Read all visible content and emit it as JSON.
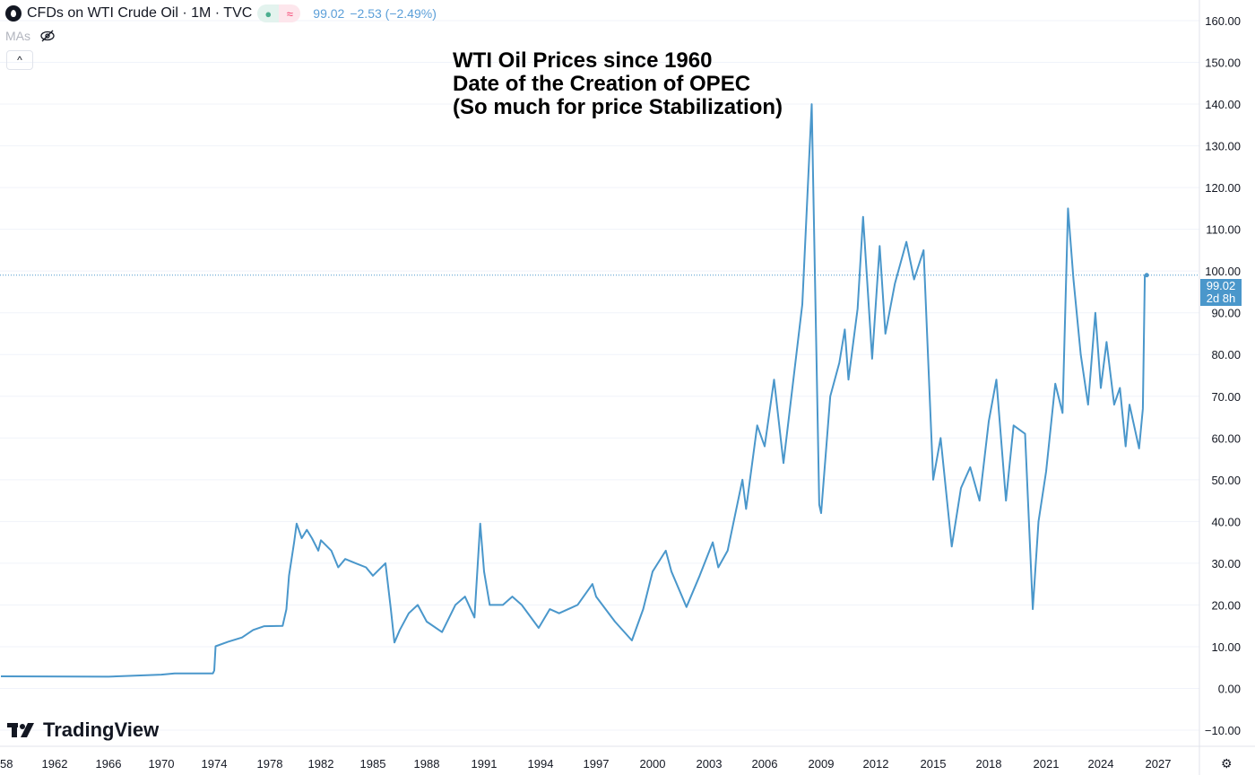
{
  "header": {
    "symbol": "CFDs on WTI Crude Oil · 1M · TVC",
    "last_price": "99.02",
    "change": "−2.53 (−2.49%)",
    "status_market_icon": "dot-icon",
    "status_delay_icon": "approx-icon",
    "mas_label": "MAs",
    "collapse_icon": "chevron-up-icon"
  },
  "annotation": "WTI Oil Prices since 1960\nDate of the Creation of OPEC\n(So much for price Stabilization)",
  "price_tag": {
    "price": "99.02",
    "countdown": "2d 8h"
  },
  "logo": "TradingView",
  "colors": {
    "line": "#4a97cb",
    "grid": "#f0f3fa",
    "text": "#131722"
  },
  "chart_data": {
    "type": "line",
    "title": "",
    "ylim": [
      -10,
      160
    ],
    "y_ticks": [
      "160.00",
      "150.00",
      "140.00",
      "130.00",
      "120.00",
      "110.00",
      "100.00",
      "90.00",
      "80.00",
      "70.00",
      "60.00",
      "50.00",
      "40.00",
      "30.00",
      "20.00",
      "10.00",
      "0.00",
      "−10.00"
    ],
    "x_ticks": [
      "58",
      "1962",
      "1966",
      "1970",
      "1974",
      "1978",
      "1982",
      "1985",
      "1988",
      "1991",
      "1994",
      "1997",
      "2000",
      "2003",
      "2006",
      "2009",
      "2012",
      "2015",
      "2018",
      "2021",
      "2024",
      "2027"
    ],
    "grid": true,
    "series": [
      {
        "points": [
          [
            1958,
            2.9
          ],
          [
            1966,
            2.8
          ],
          [
            1970,
            3.3
          ],
          [
            1971,
            3.6
          ],
          [
            1973.9,
            3.6
          ],
          [
            1974.0,
            4.3
          ],
          [
            1974.1,
            10.1
          ],
          [
            1975,
            11.2
          ],
          [
            1976,
            12.2
          ],
          [
            1976.8,
            14.0
          ],
          [
            1977.6,
            14.9
          ],
          [
            1979,
            15
          ],
          [
            1979.3,
            19
          ],
          [
            1979.5,
            27
          ],
          [
            1979.9,
            35
          ],
          [
            1980.1,
            39.5
          ],
          [
            1980.5,
            36
          ],
          [
            1980.9,
            38
          ],
          [
            1981.3,
            36
          ],
          [
            1981.8,
            33
          ],
          [
            1982.0,
            35.5
          ],
          [
            1982.6,
            33
          ],
          [
            1983.0,
            29
          ],
          [
            1983.4,
            31
          ],
          [
            1984.0,
            30
          ],
          [
            1984.6,
            29
          ],
          [
            1985.0,
            27
          ],
          [
            1985.7,
            30
          ],
          [
            1986.0,
            19
          ],
          [
            1986.2,
            11
          ],
          [
            1986.5,
            14
          ],
          [
            1987.0,
            18
          ],
          [
            1987.5,
            20
          ],
          [
            1988.0,
            16
          ],
          [
            1988.8,
            13.5
          ],
          [
            1989.5,
            20
          ],
          [
            1990.0,
            22
          ],
          [
            1990.5,
            17
          ],
          [
            1990.8,
            39.5
          ],
          [
            1991.0,
            28
          ],
          [
            1991.3,
            20
          ],
          [
            1992.0,
            20
          ],
          [
            1992.5,
            22
          ],
          [
            1993.0,
            20
          ],
          [
            1993.9,
            14.5
          ],
          [
            1994.5,
            19
          ],
          [
            1995.0,
            18
          ],
          [
            1996.0,
            20
          ],
          [
            1996.8,
            25
          ],
          [
            1997.0,
            22
          ],
          [
            1998.0,
            16
          ],
          [
            1998.9,
            11.5
          ],
          [
            1999.5,
            19
          ],
          [
            2000.0,
            28
          ],
          [
            2000.7,
            33
          ],
          [
            2001.0,
            28
          ],
          [
            2001.8,
            19.5
          ],
          [
            2002.5,
            27
          ],
          [
            2003.2,
            35
          ],
          [
            2003.5,
            29
          ],
          [
            2004.0,
            33
          ],
          [
            2004.8,
            50
          ],
          [
            2005.0,
            43
          ],
          [
            2005.6,
            63
          ],
          [
            2006.0,
            58
          ],
          [
            2006.5,
            74
          ],
          [
            2007.0,
            54
          ],
          [
            2007.5,
            73
          ],
          [
            2008.0,
            92
          ],
          [
            2008.5,
            140
          ],
          [
            2008.9,
            44
          ],
          [
            2009.0,
            42
          ],
          [
            2009.5,
            70
          ],
          [
            2010.0,
            78
          ],
          [
            2010.3,
            86
          ],
          [
            2010.5,
            74
          ],
          [
            2011.0,
            91
          ],
          [
            2011.3,
            113
          ],
          [
            2011.8,
            79
          ],
          [
            2012.2,
            106
          ],
          [
            2012.5,
            85
          ],
          [
            2013.0,
            97
          ],
          [
            2013.6,
            107
          ],
          [
            2014.0,
            98
          ],
          [
            2014.5,
            105
          ],
          [
            2015.0,
            50
          ],
          [
            2015.4,
            60
          ],
          [
            2016.0,
            34
          ],
          [
            2016.5,
            48
          ],
          [
            2017.0,
            53
          ],
          [
            2017.5,
            45
          ],
          [
            2018.0,
            64
          ],
          [
            2018.4,
            74
          ],
          [
            2018.9,
            45
          ],
          [
            2019.3,
            63
          ],
          [
            2019.9,
            61
          ],
          [
            2020.3,
            19
          ],
          [
            2020.6,
            40
          ],
          [
            2021.0,
            52
          ],
          [
            2021.5,
            73
          ],
          [
            2021.9,
            66
          ],
          [
            2022.2,
            115
          ],
          [
            2022.5,
            98
          ],
          [
            2022.9,
            80
          ],
          [
            2023.3,
            68
          ],
          [
            2023.7,
            90
          ],
          [
            2024.0,
            72
          ],
          [
            2024.3,
            83
          ],
          [
            2024.7,
            68
          ],
          [
            2025.0,
            72
          ],
          [
            2025.3,
            58
          ],
          [
            2025.5,
            68
          ],
          [
            2026.0,
            57.5
          ],
          [
            2026.2,
            67
          ],
          [
            2026.3,
            99
          ],
          [
            2026.4,
            99.02
          ]
        ]
      }
    ]
  }
}
